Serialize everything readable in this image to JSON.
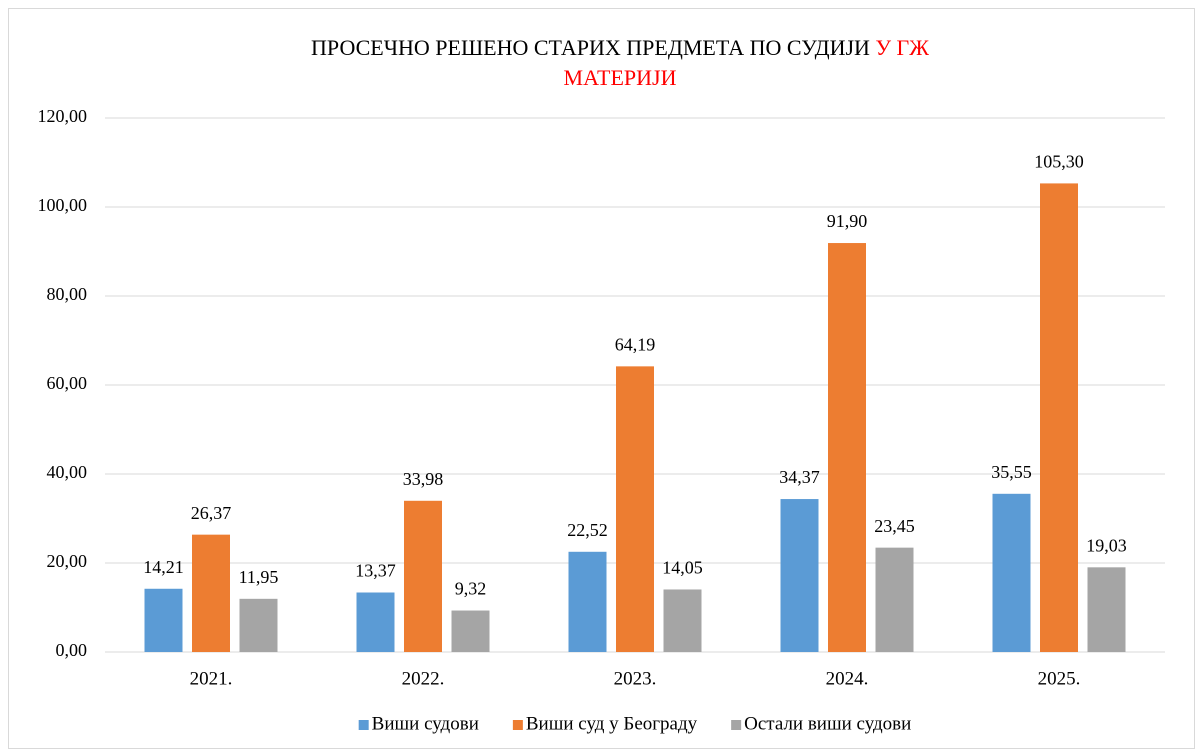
{
  "chart_data": {
    "type": "bar",
    "title": [
      "ПРОСЕЧНО  РЕШЕНО СТАРИХ ПРЕДМЕТА ПО СУДИЈИ",
      "У ГЖ",
      "МАТЕРИЈИ"
    ],
    "title_colors": [
      "#000000",
      "#ff0000",
      "#ff0000"
    ],
    "categories": [
      "2021.",
      "2022.",
      "2023.",
      "2024.",
      "2025."
    ],
    "series": [
      {
        "name": "Виши судови",
        "color": "#5b9bd5",
        "values": [
          14.21,
          13.37,
          22.52,
          34.37,
          35.55
        ],
        "value_labels": [
          "14,21",
          "13,37",
          "22,52",
          "34,37",
          "35,55"
        ]
      },
      {
        "name": "Виши суд у Београду",
        "color": "#ed7d31",
        "values": [
          26.37,
          33.98,
          64.19,
          91.9,
          105.3
        ],
        "value_labels": [
          "26,37",
          "33,98",
          "64,19",
          "91,90",
          "105,30"
        ]
      },
      {
        "name": "Остали виши судови",
        "color": "#a5a5a5",
        "values": [
          11.95,
          9.32,
          14.05,
          23.45,
          19.03
        ],
        "value_labels": [
          "11,95",
          "9,32",
          "14,05",
          "23,45",
          "19,03"
        ]
      }
    ],
    "ylim": [
      0,
      120
    ],
    "yticks": [
      {
        "value": 0,
        "label": "0,00"
      },
      {
        "value": 20,
        "label": "20,00"
      },
      {
        "value": 40,
        "label": "40,00"
      },
      {
        "value": 60,
        "label": "60,00"
      },
      {
        "value": 80,
        "label": "80,00"
      },
      {
        "value": 100,
        "label": "100,00"
      },
      {
        "value": 120,
        "label": "120,00"
      }
    ],
    "grid": true,
    "legend": "bottom"
  }
}
